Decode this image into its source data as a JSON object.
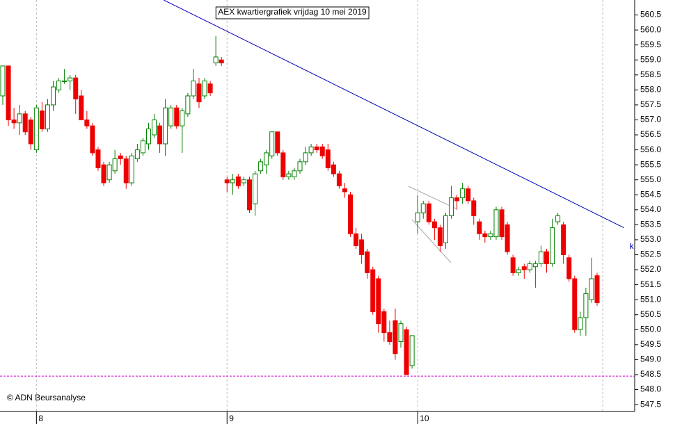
{
  "chart_data": {
    "type": "candlestick",
    "title": "AEX kwartiergrafiek vrijdag 10 mei 2019",
    "credit": "© ADN Beursanalyse",
    "categories": [
      null,
      null,
      null,
      null,
      null,
      null,
      "8",
      null,
      null,
      null,
      null,
      null,
      null,
      null,
      null,
      null,
      null,
      null,
      null,
      null,
      null,
      null,
      null,
      null,
      null,
      null,
      null,
      null,
      null,
      null,
      null,
      null,
      null,
      null,
      null,
      null,
      null,
      null,
      null,
      null,
      "9",
      null,
      null,
      null,
      null,
      null,
      null,
      null,
      null,
      null,
      null,
      null,
      null,
      null,
      null,
      null,
      null,
      null,
      null,
      null,
      null,
      null,
      null,
      null,
      null,
      null,
      null,
      null,
      null,
      null,
      null,
      null,
      null,
      null,
      "10",
      null,
      null,
      null,
      null,
      null,
      null,
      null,
      null,
      null,
      null,
      null,
      null,
      null,
      null,
      null,
      null,
      null,
      null,
      null,
      null,
      null,
      null,
      null,
      null,
      null,
      null,
      null,
      null,
      null,
      null,
      null,
      null
    ],
    "open": [
      557.8,
      558.8,
      557.0,
      556.9,
      557.2,
      557.0,
      556.0,
      557.3,
      556.7,
      557.5,
      558.0,
      558.3,
      558.3,
      558.4,
      557.8,
      557.0,
      556.8,
      556.0,
      555.5,
      555.0,
      555.3,
      555.8,
      555.7,
      554.9,
      555.7,
      555.9,
      556.2,
      556.5,
      556.8,
      556.2,
      556.8,
      557.4,
      556.8,
      557.2,
      557.8,
      558.2,
      557.8,
      558.2,
      558.9,
      559.0,
      555.0,
      554.9,
      555.1,
      554.9,
      555.0,
      554.2,
      555.3,
      555.5,
      555.8,
      556.6,
      555.9,
      555.1,
      555.1,
      555.3,
      555.6,
      555.9,
      556.1,
      556.1,
      556.0,
      555.5,
      555.2,
      554.7,
      554.5,
      553.2,
      553.0,
      552.6,
      552.0,
      551.7,
      550.6,
      549.9,
      550.3,
      549.6,
      550.0,
      548.8,
      553.6,
      553.9,
      554.2,
      553.6,
      553.4,
      552.9,
      553.8,
      554.4,
      554.4,
      554.7,
      554.3,
      553.6,
      553.2,
      553.1,
      553.1,
      554.0,
      553.5,
      552.4,
      551.9,
      552.1,
      552.0,
      552.1,
      552.2,
      552.6,
      552.2,
      553.6,
      553.5,
      552.4,
      551.7,
      550.0,
      550.4,
      551.0,
      551.8
    ],
    "high": [
      558.8,
      558.8,
      557.4,
      557.5,
      557.3,
      557.1,
      557.5,
      557.6,
      557.7,
      558.3,
      558.4,
      558.7,
      558.5,
      558.5,
      558.0,
      557.3,
      556.9,
      556.1,
      555.6,
      555.6,
      556.0,
      555.9,
      555.8,
      555.9,
      556.2,
      556.4,
      556.9,
      557.2,
      556.9,
      557.7,
      557.5,
      557.5,
      557.4,
      557.9,
      558.7,
      558.4,
      558.4,
      558.3,
      559.8,
      559.1,
      555.1,
      555.2,
      555.2,
      555.1,
      555.1,
      555.3,
      555.7,
      556.0,
      556.6,
      556.6,
      556.0,
      555.3,
      555.4,
      555.7,
      556.1,
      556.2,
      556.2,
      556.2,
      556.2,
      555.6,
      555.3,
      554.9,
      554.6,
      553.4,
      553.2,
      552.7,
      552.1,
      551.8,
      550.7,
      550.3,
      550.7,
      550.3,
      550.1,
      549.8,
      554.5,
      554.3,
      554.3,
      553.7,
      553.5,
      553.9,
      554.8,
      554.5,
      554.9,
      554.8,
      554.4,
      553.7,
      553.3,
      553.3,
      554.1,
      554.1,
      553.6,
      552.5,
      552.1,
      552.2,
      552.3,
      552.3,
      552.8,
      552.7,
      553.7,
      553.9,
      553.6,
      552.5,
      551.8,
      550.6,
      551.4,
      552.4,
      551.9
    ],
    "low": [
      557.5,
      556.8,
      556.7,
      556.5,
      556.5,
      556.0,
      555.9,
      556.6,
      556.6,
      557.3,
      557.9,
      558.2,
      558.0,
      557.2,
      557.0,
      556.7,
      555.8,
      555.3,
      554.8,
      554.9,
      555.2,
      555.5,
      554.7,
      554.8,
      555.6,
      555.8,
      556.0,
      556.4,
      555.9,
      555.8,
      556.7,
      556.7,
      555.9,
      557.1,
      557.7,
      557.4,
      557.7,
      557.8,
      558.8,
      558.8,
      554.6,
      554.5,
      554.7,
      554.8,
      553.9,
      553.8,
      555.2,
      555.2,
      555.7,
      555.8,
      555.0,
      555.0,
      555.0,
      555.2,
      555.5,
      555.8,
      555.9,
      555.7,
      555.3,
      555.1,
      554.7,
      554.4,
      553.1,
      552.7,
      552.2,
      551.7,
      550.5,
      549.9,
      549.6,
      549.5,
      549.0,
      549.4,
      548.5,
      548.7,
      553.2,
      553.7,
      553.5,
      553.0,
      552.6,
      552.7,
      553.7,
      554.0,
      554.2,
      554.2,
      553.5,
      553.0,
      552.9,
      553.0,
      553.0,
      553.0,
      552.5,
      551.8,
      551.8,
      551.7,
      551.9,
      551.4,
      552.1,
      551.9,
      552.1,
      553.5,
      552.2,
      551.6,
      549.9,
      549.8,
      549.8,
      550.9,
      550.8
    ],
    "close": [
      558.8,
      557.0,
      556.9,
      557.2,
      556.6,
      556.2,
      557.4,
      556.7,
      557.5,
      558.1,
      558.3,
      558.3,
      558.4,
      557.7,
      557.0,
      556.8,
      555.9,
      555.4,
      554.9,
      555.5,
      555.7,
      555.7,
      554.9,
      555.8,
      556.0,
      556.3,
      556.7,
      557.0,
      556.2,
      557.4,
      557.4,
      556.8,
      557.3,
      557.8,
      558.3,
      557.6,
      558.3,
      557.9,
      559.1,
      558.9,
      554.9,
      555.0,
      554.8,
      555.0,
      554.0,
      555.2,
      555.6,
      555.9,
      556.6,
      555.9,
      555.1,
      555.2,
      555.3,
      555.6,
      555.9,
      556.1,
      556.0,
      555.8,
      555.4,
      555.2,
      554.8,
      554.6,
      553.2,
      552.8,
      552.5,
      551.9,
      550.6,
      550.2,
      549.9,
      549.6,
      549.2,
      550.2,
      548.5,
      549.8,
      553.9,
      554.2,
      553.6,
      553.4,
      552.8,
      553.8,
      554.4,
      554.3,
      554.7,
      554.3,
      553.8,
      553.2,
      553.1,
      553.2,
      554.0,
      553.1,
      552.6,
      551.9,
      552.0,
      552.0,
      552.2,
      552.2,
      552.6,
      552.2,
      553.4,
      553.8,
      552.5,
      551.7,
      550.0,
      550.4,
      551.2,
      551.7,
      550.9
    ],
    "up_color": "#008000",
    "down_color": "#ee0000",
    "trendline": {
      "x": [
        28.7,
        110.8
      ],
      "values": [
        561.0,
        553.4
      ],
      "color": "#0000bb",
      "label": "k"
    },
    "hline": {
      "value": 548.45,
      "color": "#cc00cc"
    },
    "ylim": [
      547.27,
      561.0
    ],
    "yticks": [
      547.5,
      {
        "value": 548.0,
        "label": "548.0"
      },
      548.5,
      {
        "value": 549.0,
        "label": "549.0"
      },
      549.5,
      {
        "value": 550.0,
        "label": "550.0"
      },
      550.5,
      {
        "value": 551.0,
        "label": "551.0"
      },
      551.5,
      {
        "value": 552.0,
        "label": "552.0"
      },
      552.5,
      {
        "value": 553.0,
        "label": "553.0"
      },
      553.5,
      {
        "value": 554.0,
        "label": "554.0"
      },
      554.5,
      {
        "value": 555.0,
        "label": "555.0"
      },
      555.5,
      {
        "value": 556.0,
        "label": "556.0"
      },
      556.5,
      {
        "value": 557.0,
        "label": "557.0"
      },
      557.5,
      {
        "value": 558.0,
        "label": "558.0"
      },
      558.5,
      {
        "value": 559.0,
        "label": "559.0"
      },
      559.5,
      {
        "value": 560.0,
        "label": "560.0"
      },
      560.5
    ],
    "grid": true
  }
}
